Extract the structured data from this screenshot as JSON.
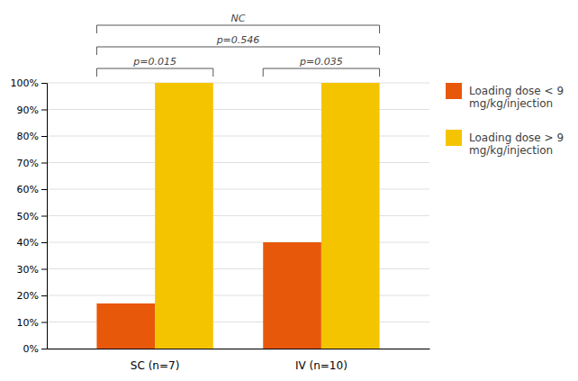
{
  "chart_data": {
    "type": "bar",
    "categories": [
      "SC (n=7)",
      "IV (n=10)"
    ],
    "series": [
      {
        "name": "Loading dose < 9\nmg/kg/injection",
        "color": "#E8580A",
        "values": [
          0.17,
          0.4
        ]
      },
      {
        "name": "Loading dose > 9\nmg/kg/injection",
        "color": "#F5C400",
        "values": [
          1.0,
          1.0
        ]
      }
    ],
    "ylim": [
      0,
      1.0
    ],
    "yticks": [
      {
        "value": 0.0,
        "label": "0%"
      },
      {
        "value": 0.1,
        "label": "10%"
      },
      {
        "value": 0.2,
        "label": "20%"
      },
      {
        "value": 0.3,
        "label": "30%"
      },
      {
        "value": 0.4,
        "label": "40%"
      },
      {
        "value": 0.5,
        "label": "50%"
      },
      {
        "value": 0.6,
        "label": "60%"
      },
      {
        "value": 0.7,
        "label": "70%"
      },
      {
        "value": 0.8,
        "label": "80%"
      },
      {
        "value": 0.9,
        "label": "90%"
      },
      {
        "value": 1.0,
        "label": "100%"
      }
    ],
    "annotations": [
      "p=0.015",
      "p=0.035",
      "p=0.546",
      "NC"
    ],
    "grid": true,
    "legend": "right"
  }
}
